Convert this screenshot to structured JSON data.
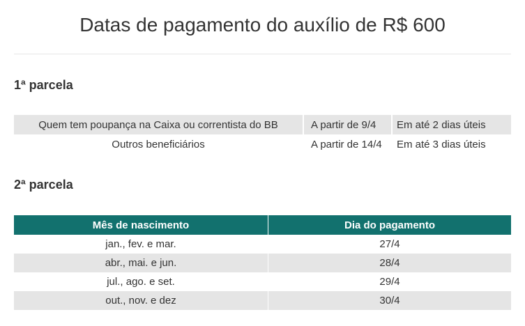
{
  "title": "Datas de pagamento do auxílio de R$ 600",
  "section1": {
    "heading": "1ª parcela",
    "rows": [
      {
        "group": "Quem tem poupança na Caixa ou correntista do BB",
        "start": "A partir de 9/4",
        "deadline": "Em até 2 dias úteis"
      },
      {
        "group": "Outros beneficiários",
        "start": "A partir de 14/4",
        "deadline": "Em até 3 dias úteis"
      }
    ]
  },
  "section2": {
    "heading": "2ª parcela",
    "headers": [
      "Mês de nascimento",
      "Dia do pagamento"
    ],
    "rows": [
      {
        "months": "jan., fev. e mar.",
        "day": "27/4"
      },
      {
        "months": "abr., mai. e jun.",
        "day": "28/4"
      },
      {
        "months": "jul., ago. e set.",
        "day": "29/4"
      },
      {
        "months": "out., nov. e dez",
        "day": "30/4"
      }
    ]
  },
  "colors": {
    "header_bg": "#12716e",
    "row_shade": "#e5e5e5"
  }
}
